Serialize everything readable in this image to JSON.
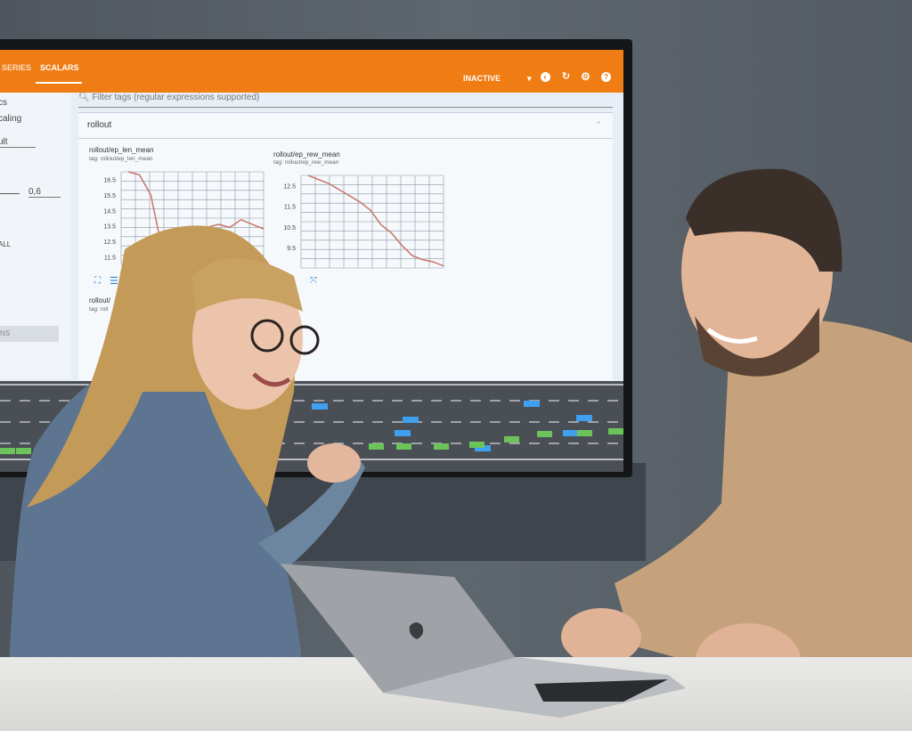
{
  "screen": {
    "tabs": [
      {
        "label": "SERIES"
      },
      {
        "label": "SCALARS"
      }
    ],
    "status": "INACTIVE",
    "toolbar_icons": [
      "theme-icon",
      "refresh-icon",
      "settings-icon",
      "help-icon"
    ],
    "accent_color": "#f07c14",
    "sidebar": {
      "item1": "cs",
      "item2": "caling",
      "dropdown": "ult",
      "smoothing_value": "0,6",
      "toggle": "ALL",
      "button": "NS"
    },
    "filter_placeholder": "Filter tags (regular expressions supported)",
    "group_title": "rollout",
    "charts": [
      {
        "title": "rollout/ep_len_mean",
        "tag": "tag: rollout/ep_len_mean"
      },
      {
        "title": "rollout/ep_rew_mean",
        "tag": "tag: rollout/ep_rew_mean"
      },
      {
        "title": "rollout/",
        "tag": "tag: roll"
      }
    ]
  },
  "chart_data": [
    {
      "type": "line",
      "title": "rollout/ep_len_mean",
      "yticks": [
        "16.5",
        "15.5",
        "14.5",
        "13.5",
        "12.5",
        "11.5"
      ],
      "ylim": [
        11,
        17
      ],
      "values": [
        17,
        16.8,
        15.5,
        12,
        11.4,
        11.6,
        12.8,
        13.4,
        13.6,
        13.4,
        13.9,
        13.6,
        13.3
      ],
      "line_color": "#c87a70"
    },
    {
      "type": "line",
      "title": "rollout/ep_rew_mean",
      "yticks": [
        "12.5",
        "11.5",
        "10.5",
        "9.5"
      ],
      "ylim": [
        8.5,
        13
      ],
      "values": [
        13,
        12.8,
        12.6,
        12.3,
        12,
        11.7,
        11.3,
        10.6,
        10.2,
        9.6,
        9.1,
        8.9,
        8.8,
        8.6
      ],
      "line_color": "#c87a70"
    }
  ]
}
